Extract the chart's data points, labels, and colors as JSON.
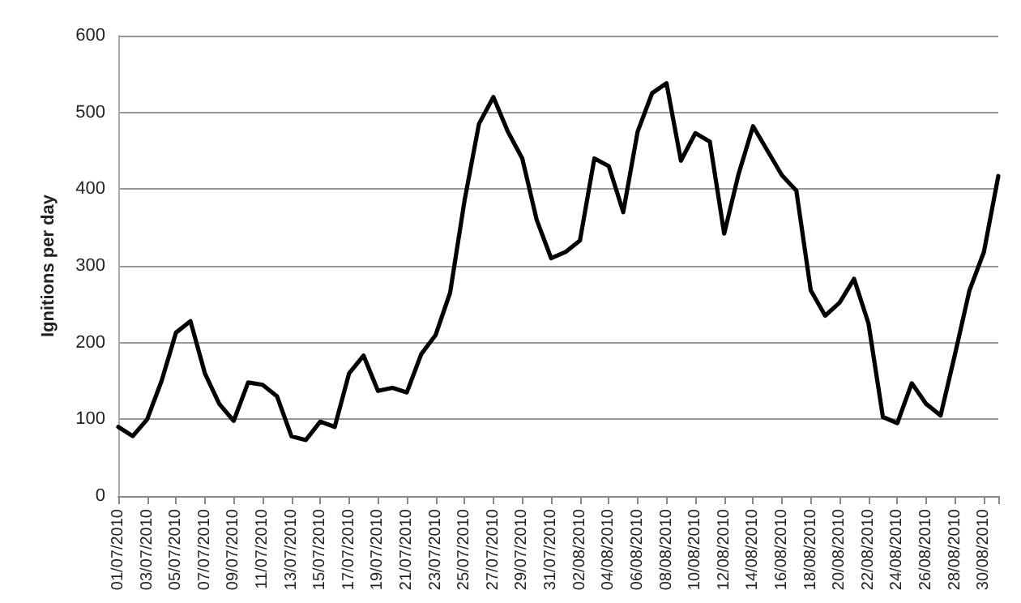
{
  "chart_data": {
    "type": "line",
    "ylabel": "Ignitions per day",
    "categories": [
      "01/07/2010",
      null,
      "03/07/2010",
      null,
      "05/07/2010",
      null,
      "07/07/2010",
      null,
      "09/07/2010",
      null,
      "11/07/2010",
      null,
      "13/07/2010",
      null,
      "15/07/2010",
      null,
      "17/07/2010",
      null,
      "19/07/2010",
      null,
      "21/07/2010",
      null,
      "23/07/2010",
      null,
      "25/07/2010",
      null,
      "27/07/2010",
      null,
      "29/07/2010",
      null,
      "31/07/2010",
      null,
      "02/08/2010",
      null,
      "04/08/2010",
      null,
      "06/08/2010",
      null,
      "08/08/2010",
      null,
      "10/08/2010",
      null,
      "12/08/2010",
      null,
      "14/08/2010",
      null,
      "16/08/2010",
      null,
      "18/08/2010",
      null,
      "20/08/2010",
      null,
      "22/08/2010",
      null,
      "24/08/2010",
      null,
      "26/08/2010",
      null,
      "28/08/2010",
      null,
      "30/08/2010",
      null
    ],
    "series": [
      {
        "color": "#000000",
        "values": [
          90,
          78,
          100,
          150,
          213,
          228,
          160,
          120,
          98,
          148,
          145,
          130,
          78,
          73,
          97,
          90,
          160,
          183,
          137,
          141,
          135,
          185,
          210,
          265,
          385,
          485,
          520,
          475,
          440,
          360,
          310,
          318,
          333,
          440,
          430,
          370,
          475,
          525,
          538,
          437,
          473,
          462,
          342,
          420,
          482,
          450,
          418,
          398,
          268,
          235,
          252,
          283,
          225,
          103,
          95,
          147,
          120,
          105,
          185,
          268,
          318,
          417
        ]
      }
    ],
    "ylim": [
      0,
      600
    ],
    "yticks": [
      0,
      100,
      200,
      300,
      400,
      500,
      600
    ],
    "grid": "y",
    "marker": "none",
    "line_style": "solid"
  }
}
